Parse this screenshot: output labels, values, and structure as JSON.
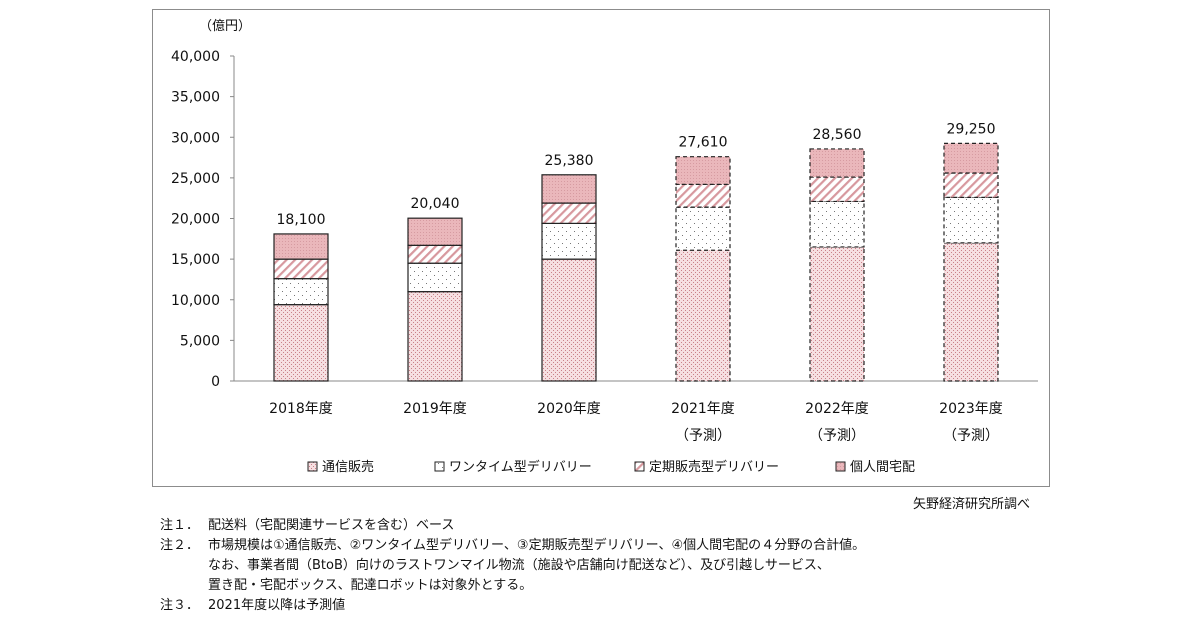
{
  "chart_data": {
    "type": "bar",
    "stacked": true,
    "unit_label": "（億円）",
    "ylim": [
      0,
      40000
    ],
    "yticks": [
      0,
      5000,
      10000,
      15000,
      20000,
      25000,
      30000,
      35000,
      40000
    ],
    "ytick_labels": [
      "0",
      "5,000",
      "10,000",
      "15,000",
      "20,000",
      "25,000",
      "30,000",
      "35,000",
      "40,000"
    ],
    "categories": [
      "2018年度",
      "2019年度",
      "2020年度",
      "2021年度",
      "2022年度",
      "2023年度"
    ],
    "category_sublabels": [
      "",
      "",
      "",
      "（予測）",
      "（予測）",
      "（予測）"
    ],
    "forecast": [
      false,
      false,
      false,
      true,
      true,
      true
    ],
    "totals": [
      18100,
      20040,
      25380,
      27610,
      28560,
      29250
    ],
    "total_labels": [
      "18,100",
      "20,040",
      "25,380",
      "27,610",
      "28,560",
      "29,250"
    ],
    "series": [
      {
        "name": "通信販売",
        "values": [
          9400,
          11000,
          15000,
          16100,
          16500,
          17000
        ],
        "color": "#e8b4b8"
      },
      {
        "name": "ワンタイム型デリバリー",
        "values": [
          3200,
          3500,
          4400,
          5300,
          5600,
          5600
        ],
        "color": "#9a9a9a"
      },
      {
        "name": "定期販売型デリバリー",
        "values": [
          2400,
          2200,
          2500,
          2800,
          3000,
          3000
        ],
        "color": "#d99aa0"
      },
      {
        "name": "個人間宅配",
        "values": [
          3100,
          3340,
          3480,
          3410,
          3460,
          3650
        ],
        "color": "#e8b4b8"
      }
    ],
    "legend_position": "bottom"
  },
  "source": "矢野経済研究所調べ",
  "notes": [
    {
      "mark": "注１．",
      "lines": [
        "配送料（宅配関連サービスを含む）ベース"
      ]
    },
    {
      "mark": "注２．",
      "lines": [
        "市場規模は①通信販売、②ワンタイム型デリバリー、③定期販売型デリバリー、④個人間宅配の４分野の合計値。",
        "なお、事業者間（BtoB）向けのラストワンマイル物流（施設や店舗向け配送など）、及び引越しサービス、",
        "置き配・宅配ボックス、配達ロボットは対象外とする。"
      ]
    },
    {
      "mark": "注３．",
      "lines": [
        "2021年度以降は予測値"
      ]
    }
  ]
}
